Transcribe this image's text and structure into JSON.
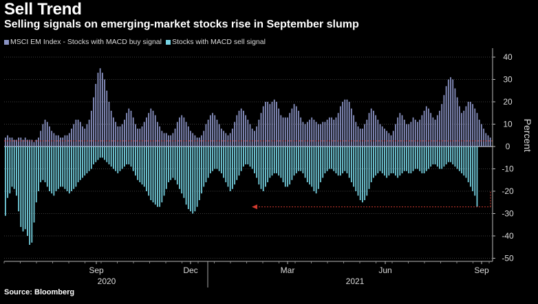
{
  "title": "Sell Trend",
  "subtitle": "Selling signals on emerging-market stocks rise in September slump",
  "source": "Source: Bloomberg",
  "colors": {
    "buy": "#8a93c4",
    "sell": "#76d3e3",
    "zero_line": "#ffffff",
    "reference_line": "#c0392b",
    "grid": "#555555"
  },
  "chart_data": {
    "type": "bar",
    "title": "Sell Trend",
    "subtitle": "Selling signals on emerging-market stocks rise in September slump",
    "xlabel": "",
    "ylabel": "Percent",
    "ylim": [
      -50,
      40
    ],
    "yticks": [
      40,
      30,
      20,
      10,
      0,
      -10,
      -20,
      -30,
      -40,
      -50
    ],
    "grid": true,
    "legend_position": "top-left",
    "x_tick_labels": [
      "Sep",
      "Dec",
      "Mar",
      "Jun",
      "Sep"
    ],
    "x_year_labels": [
      "2020",
      "2021"
    ],
    "x_range": [
      "2020-07",
      "2021-09"
    ],
    "annotations": [
      {
        "type": "horizontal-dashed-line",
        "value": 2.5,
        "color": "red"
      },
      {
        "type": "arrow",
        "value": -27,
        "direction": "left",
        "color": "red"
      }
    ],
    "series": [
      {
        "name": "MSCI EM Index - Stocks with MACD buy signal",
        "values": [
          4,
          5,
          4,
          4,
          3,
          3,
          4,
          4,
          3,
          4,
          3,
          3,
          3,
          2,
          3,
          4,
          7,
          10,
          12,
          11,
          9,
          7,
          6,
          5,
          5,
          4,
          4,
          5,
          5,
          6,
          8,
          10,
          12,
          12,
          11,
          9,
          8,
          10,
          12,
          16,
          22,
          28,
          33,
          35,
          33,
          30,
          25,
          20,
          16,
          13,
          11,
          9,
          9,
          10,
          12,
          15,
          17,
          16,
          13,
          10,
          8,
          8,
          9,
          11,
          13,
          15,
          17,
          16,
          14,
          11,
          9,
          7,
          6,
          6,
          5,
          5,
          6,
          8,
          11,
          13,
          14,
          13,
          11,
          9,
          7,
          6,
          5,
          4,
          4,
          5,
          7,
          10,
          12,
          14,
          15,
          14,
          12,
          10,
          8,
          7,
          6,
          5,
          6,
          8,
          11,
          14,
          16,
          17,
          16,
          14,
          12,
          10,
          8,
          7,
          9,
          12,
          15,
          18,
          20,
          20,
          19,
          20,
          21,
          20,
          17,
          14,
          13,
          13,
          13,
          15,
          17,
          19,
          18,
          16,
          13,
          11,
          10,
          11,
          12,
          13,
          12,
          11,
          10,
          10,
          11,
          11,
          12,
          13,
          13,
          12,
          13,
          15,
          18,
          20,
          21,
          21,
          20,
          17,
          14,
          11,
          9,
          8,
          8,
          10,
          12,
          15,
          17,
          16,
          14,
          12,
          10,
          9,
          8,
          7,
          6,
          5,
          7,
          10,
          13,
          15,
          14,
          12,
          10,
          10,
          11,
          13,
          12,
          11,
          12,
          14,
          16,
          18,
          17,
          15,
          13,
          12,
          14,
          16,
          19,
          23,
          27,
          30,
          31,
          30,
          26,
          22,
          18,
          15,
          16,
          18,
          20,
          20,
          19,
          17,
          15,
          12,
          10,
          8,
          6,
          5,
          4
        ],
        "color": "#8a93c4"
      },
      {
        "name": "Stocks with MACD sell signal",
        "values": [
          -31,
          -23,
          -21,
          -18,
          -19,
          -22,
          -29,
          -36,
          -38,
          -37,
          -40,
          -44,
          -43,
          -34,
          -25,
          -20,
          -16,
          -15,
          -16,
          -18,
          -20,
          -21,
          -22,
          -20,
          -19,
          -18,
          -18,
          -19,
          -20,
          -21,
          -20,
          -19,
          -18,
          -16,
          -15,
          -14,
          -13,
          -12,
          -11,
          -10,
          -8,
          -7,
          -6,
          -5,
          -5,
          -6,
          -7,
          -8,
          -9,
          -10,
          -11,
          -12,
          -11,
          -10,
          -9,
          -8,
          -8,
          -9,
          -11,
          -13,
          -15,
          -16,
          -17,
          -18,
          -20,
          -22,
          -24,
          -25,
          -26,
          -27,
          -27,
          -25,
          -22,
          -19,
          -16,
          -15,
          -14,
          -15,
          -17,
          -19,
          -21,
          -23,
          -26,
          -28,
          -29,
          -30,
          -29,
          -27,
          -24,
          -21,
          -18,
          -16,
          -14,
          -12,
          -11,
          -10,
          -10,
          -11,
          -12,
          -14,
          -16,
          -18,
          -20,
          -19,
          -17,
          -15,
          -13,
          -11,
          -9,
          -8,
          -8,
          -9,
          -10,
          -12,
          -14,
          -17,
          -19,
          -20,
          -18,
          -16,
          -14,
          -13,
          -12,
          -12,
          -13,
          -14,
          -16,
          -18,
          -18,
          -17,
          -15,
          -13,
          -12,
          -11,
          -11,
          -12,
          -14,
          -16,
          -17,
          -18,
          -20,
          -21,
          -19,
          -16,
          -14,
          -12,
          -11,
          -10,
          -10,
          -11,
          -12,
          -13,
          -13,
          -12,
          -11,
          -12,
          -14,
          -16,
          -18,
          -20,
          -22,
          -24,
          -25,
          -24,
          -22,
          -19,
          -16,
          -14,
          -13,
          -12,
          -11,
          -12,
          -13,
          -14,
          -13,
          -12,
          -12,
          -13,
          -14,
          -13,
          -12,
          -11,
          -11,
          -12,
          -12,
          -11,
          -10,
          -10,
          -11,
          -12,
          -12,
          -11,
          -10,
          -9,
          -8,
          -8,
          -9,
          -10,
          -10,
          -9,
          -8,
          -7,
          -7,
          -8,
          -9,
          -10,
          -11,
          -12,
          -13,
          -14,
          -16,
          -18,
          -20,
          -22,
          -27
        ],
        "color": "#76d3e3"
      }
    ]
  },
  "legend": [
    {
      "label": "MSCI EM Index - Stocks with MACD buy signal",
      "color": "#8a93c4"
    },
    {
      "label": "Stocks with MACD sell signal",
      "color": "#76d3e3"
    }
  ]
}
